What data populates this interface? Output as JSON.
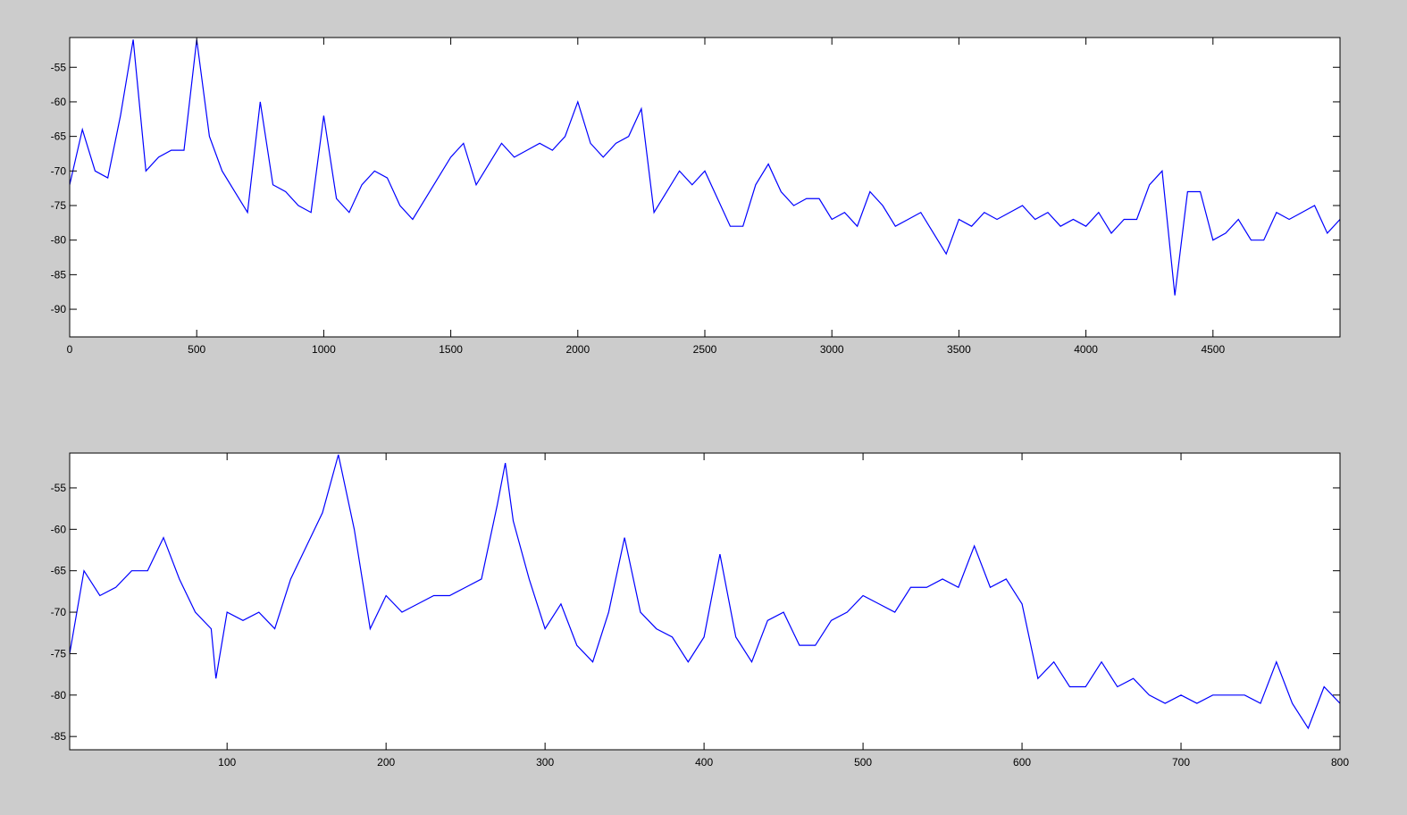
{
  "chart_data": [
    {
      "type": "line",
      "x": [
        0,
        50,
        100,
        150,
        200,
        250,
        300,
        350,
        400,
        450,
        500,
        550,
        600,
        650,
        700,
        750,
        800,
        850,
        900,
        950,
        1000,
        1050,
        1100,
        1150,
        1200,
        1250,
        1300,
        1350,
        1400,
        1450,
        1500,
        1550,
        1600,
        1650,
        1700,
        1750,
        1800,
        1850,
        1900,
        1950,
        2000,
        2050,
        2100,
        2150,
        2200,
        2250,
        2300,
        2350,
        2400,
        2450,
        2500,
        2550,
        2600,
        2650,
        2700,
        2750,
        2800,
        2850,
        2900,
        2950,
        3000,
        3050,
        3100,
        3150,
        3200,
        3250,
        3300,
        3350,
        3400,
        3450,
        3500,
        3550,
        3600,
        3650,
        3700,
        3750,
        3800,
        3850,
        3900,
        3950,
        4000,
        4050,
        4100,
        4150,
        4200,
        4250,
        4300,
        4350,
        4400,
        4450,
        4500,
        4550,
        4600,
        4650,
        4700,
        4750,
        4800,
        4850,
        4900,
        4950,
        5000
      ],
      "series": [
        {
          "color": "#0000ff",
          "values": [
            -72,
            -64,
            -70,
            -71,
            -62,
            -51,
            -70,
            -68,
            -67,
            -67,
            -51,
            -65,
            -70,
            -73,
            -76,
            -60,
            -72,
            -73,
            -75,
            -76,
            -62,
            -74,
            -76,
            -72,
            -70,
            -71,
            -75,
            -77,
            -74,
            -71,
            -68,
            -66,
            -72,
            -69,
            -66,
            -68,
            -67,
            -66,
            -67,
            -65,
            -60,
            -66,
            -68,
            -66,
            -65,
            -61,
            -76,
            -73,
            -70,
            -72,
            -70,
            -74,
            -78,
            -78,
            -72,
            -69,
            -73,
            -75,
            -74,
            -74,
            -77,
            -76,
            -78,
            -73,
            -75,
            -78,
            -77,
            -76,
            -79,
            -82,
            -77,
            -78,
            -76,
            -77,
            -76,
            -75,
            -77,
            -76,
            -78,
            -77,
            -78,
            -76,
            -79,
            -77,
            -77,
            -72,
            -70,
            -88,
            -73,
            -73,
            -80,
            -79,
            -77,
            -80,
            -80,
            -76,
            -77,
            -76,
            -75,
            -79,
            -77
          ]
        }
      ],
      "xlim": [
        0,
        5000
      ],
      "ylim": [
        -94,
        -50.7
      ],
      "xticks": [
        0,
        500,
        1000,
        1500,
        2000,
        2500,
        3000,
        3500,
        4000,
        4500
      ],
      "yticks": [
        -90,
        -85,
        -80,
        -75,
        -70,
        -65,
        -60,
        -55
      ]
    },
    {
      "type": "line",
      "x": [
        1,
        10,
        20,
        30,
        40,
        50,
        60,
        70,
        80,
        90,
        93,
        100,
        110,
        120,
        130,
        140,
        150,
        160,
        170,
        180,
        190,
        200,
        210,
        220,
        230,
        240,
        250,
        260,
        270,
        275,
        280,
        290,
        300,
        310,
        320,
        330,
        340,
        350,
        360,
        370,
        380,
        390,
        400,
        410,
        420,
        430,
        440,
        450,
        460,
        470,
        480,
        490,
        500,
        510,
        520,
        530,
        540,
        550,
        560,
        570,
        580,
        590,
        600,
        610,
        620,
        630,
        640,
        650,
        660,
        670,
        680,
        690,
        700,
        710,
        720,
        730,
        740,
        750,
        760,
        770,
        780,
        790,
        800
      ],
      "series": [
        {
          "color": "#0000ff",
          "values": [
            -75,
            -65,
            -68,
            -67,
            -65,
            -65,
            -61,
            -66,
            -70,
            -72,
            -78,
            -70,
            -71,
            -70,
            -72,
            -66,
            -62,
            -58,
            -51,
            -60,
            -72,
            -68,
            -70,
            -69,
            -68,
            -68,
            -67,
            -66,
            -57,
            -52,
            -59,
            -66,
            -72,
            -69,
            -74,
            -76,
            -70,
            -61,
            -70,
            -72,
            -73,
            -76,
            -73,
            -63,
            -73,
            -76,
            -71,
            -70,
            -74,
            -74,
            -71,
            -70,
            -68,
            -69,
            -70,
            -67,
            -67,
            -66,
            -67,
            -62,
            -67,
            -66,
            -69,
            -78,
            -76,
            -79,
            -79,
            -76,
            -79,
            -78,
            -80,
            -81,
            -80,
            -81,
            -80,
            -80,
            -80,
            -81,
            -76,
            -81,
            -84,
            -79,
            -81
          ]
        }
      ],
      "xlim": [
        1,
        800
      ],
      "ylim": [
        -86.6,
        -50.8
      ],
      "xticks": [
        100,
        200,
        300,
        400,
        500,
        600,
        700,
        800
      ],
      "yticks": [
        -85,
        -80,
        -75,
        -70,
        -65,
        -60,
        -55
      ]
    }
  ]
}
